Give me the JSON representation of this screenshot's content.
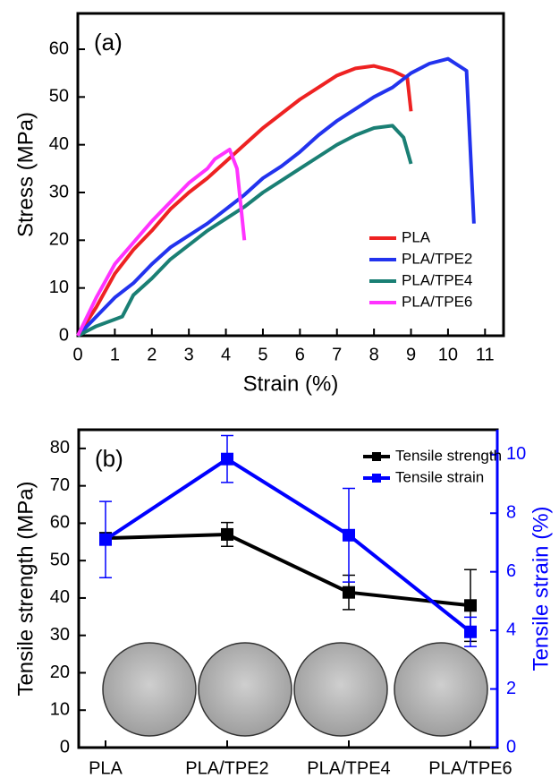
{
  "chart_data": [
    {
      "type": "line",
      "panel_label": "(a)",
      "x_label": "Strain (%)",
      "y_label": "Stress (MPa)",
      "xlim": [
        0,
        11.5
      ],
      "ylim": [
        0,
        67.5
      ],
      "xticks": [
        0,
        1,
        2,
        3,
        4,
        5,
        6,
        7,
        8,
        9,
        10,
        11
      ],
      "yticks": [
        0,
        10,
        20,
        30,
        40,
        50,
        60
      ],
      "legend": "lower right",
      "series": [
        {
          "name": "PLA",
          "color": "#ee2222",
          "x": [
            0,
            0.5,
            1,
            1.5,
            2,
            2.5,
            3,
            3.5,
            4,
            4.5,
            5,
            5.5,
            6,
            6.5,
            7,
            7.5,
            8,
            8.5,
            8.9,
            9
          ],
          "values": [
            0,
            6,
            13,
            18,
            22,
            26.5,
            30,
            33,
            36.5,
            40,
            43.5,
            46.5,
            49.5,
            52,
            54.5,
            56,
            56.5,
            55.5,
            54,
            47
          ]
        },
        {
          "name": "PLA/TPE2",
          "color": "#2233ee",
          "x": [
            0,
            0.5,
            1,
            1.5,
            2,
            2.5,
            3,
            3.5,
            4,
            4.5,
            5,
            5.5,
            6,
            6.5,
            7,
            7.5,
            8,
            8.5,
            9,
            9.5,
            10,
            10.5,
            10.7
          ],
          "values": [
            0,
            4,
            8,
            11,
            15,
            18.5,
            21,
            23.5,
            26.5,
            29.5,
            33,
            35.5,
            38.5,
            42,
            45,
            47.5,
            50,
            52,
            55,
            57,
            58,
            55.5,
            23.5
          ]
        },
        {
          "name": "PLA/TPE4",
          "color": "#1a7f74",
          "x": [
            0,
            0.5,
            1.2,
            1.5,
            2,
            2.5,
            3,
            3.5,
            4,
            4.5,
            5,
            5.5,
            6,
            6.5,
            7,
            7.5,
            8,
            8.5,
            8.8,
            9
          ],
          "values": [
            0,
            2,
            4,
            8.5,
            12,
            16,
            19,
            22,
            24.5,
            27,
            30,
            32.5,
            35,
            37.5,
            40,
            42,
            43.5,
            44,
            41.5,
            36
          ]
        },
        {
          "name": "PLA/TPE6",
          "color": "#ff33ff",
          "x": [
            0,
            0.5,
            1,
            1.5,
            2,
            2.5,
            3,
            3.5,
            3.7,
            4.1,
            4.3,
            4.5
          ],
          "values": [
            0,
            8,
            15,
            19.5,
            24,
            28,
            32,
            35,
            37,
            39,
            35,
            20
          ]
        }
      ]
    },
    {
      "type": "line",
      "panel_label": "(b)",
      "y_label": "Tensile strength (MPa)",
      "y2_label": "Tensile strain (%)",
      "categories": [
        "PLA",
        "PLA/TPE2",
        "PLA/TPE4",
        "PLA/TPE6"
      ],
      "ylim": [
        0,
        85
      ],
      "yticks": [
        0,
        10,
        20,
        30,
        40,
        50,
        60,
        70,
        80
      ],
      "y2lim": [
        0,
        10.85
      ],
      "y2ticks": [
        0,
        2,
        4,
        6,
        8,
        10
      ],
      "legend": "upper right",
      "series": [
        {
          "name": "Tensile strength",
          "color": "#000000",
          "values": [
            56,
            57,
            41.5,
            38
          ],
          "errors": [
            1,
            3.2,
            4.6,
            9.6
          ]
        },
        {
          "name": "Tensile strain",
          "color": "#0000ff",
          "axis": "y2",
          "values": [
            7.1,
            9.85,
            7.25,
            3.95
          ],
          "errors": [
            1.3,
            0.8,
            1.6,
            0.5
          ]
        }
      ]
    }
  ]
}
